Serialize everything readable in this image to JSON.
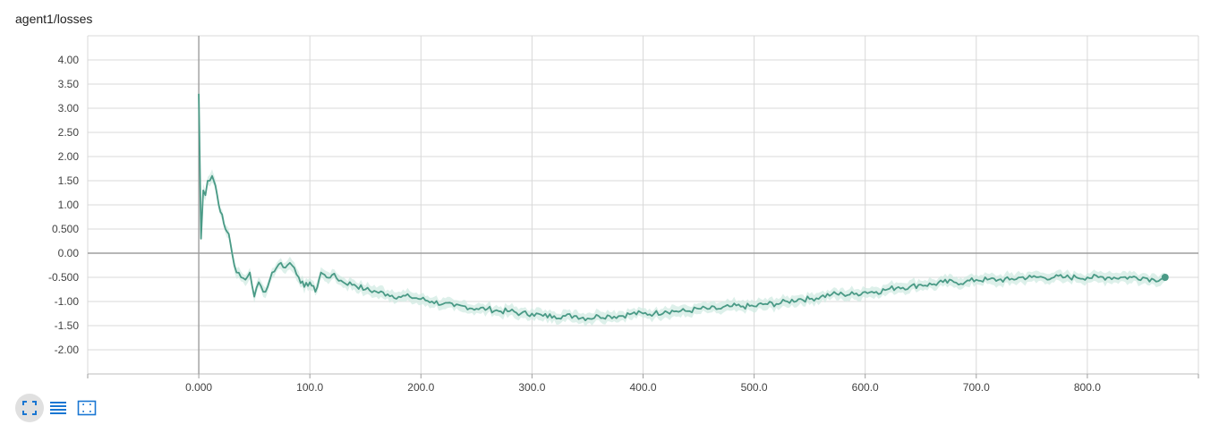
{
  "title": "agent1/losses",
  "toolbar": {
    "buttons": [
      {
        "icon": "fit-to-screen-icon",
        "active": true
      },
      {
        "icon": "data-table-icon",
        "active": false
      },
      {
        "icon": "select-region-icon",
        "active": false
      }
    ],
    "icon_color": "#1976d2"
  },
  "colors": {
    "line": "#4a9a86",
    "band": "#cfe9e1",
    "grid": "#d9d9d9",
    "zero_axis": "#9e9e9e",
    "tick_text": "#424242"
  },
  "chart_data": {
    "type": "line",
    "title": "agent1/losses",
    "xlabel": "",
    "ylabel": "",
    "xlim": [
      -100,
      900
    ],
    "ylim": [
      -2.5,
      4.5
    ],
    "x_ticks": [
      0,
      100,
      200,
      300,
      400,
      500,
      600,
      700,
      800
    ],
    "x_tick_labels": [
      "0.000",
      "100.0",
      "200.0",
      "300.0",
      "400.0",
      "500.0",
      "600.0",
      "700.0",
      "800.0"
    ],
    "y_ticks": [
      4,
      3.5,
      3,
      2.5,
      2,
      1.5,
      1,
      0.5,
      0,
      -0.5,
      -1,
      -1.5,
      -2
    ],
    "y_tick_labels": [
      "4.00",
      "3.50",
      "3.00",
      "2.50",
      "2.00",
      "1.50",
      "1.00",
      "0.500",
      "0.00",
      "-0.500",
      "-1.00",
      "-1.50",
      "-2.00"
    ],
    "grid": true,
    "legend": "none",
    "series": [
      {
        "x": [
          0,
          2,
          4,
          6,
          8,
          10,
          12,
          15,
          18,
          21,
          24,
          27,
          30,
          34,
          38,
          42,
          46,
          50,
          54,
          58,
          62,
          66,
          70,
          74,
          78,
          82,
          86,
          90,
          95,
          100,
          105,
          110,
          115,
          120,
          130,
          140,
          150,
          160,
          170,
          180,
          190,
          200,
          210,
          220,
          230,
          240,
          250,
          260,
          270,
          280,
          290,
          300,
          310,
          320,
          330,
          340,
          350,
          360,
          370,
          380,
          390,
          400,
          410,
          420,
          430,
          440,
          450,
          460,
          470,
          480,
          490,
          500,
          510,
          520,
          530,
          540,
          550,
          560,
          570,
          580,
          590,
          600,
          610,
          620,
          630,
          640,
          650,
          660,
          670,
          680,
          690,
          700,
          710,
          720,
          730,
          740,
          750,
          760,
          770,
          780,
          790,
          800,
          810,
          820,
          830,
          840,
          850,
          860,
          870
        ],
        "y": [
          3.3,
          0.3,
          1.3,
          1.2,
          1.5,
          1.5,
          1.6,
          1.4,
          1.0,
          0.8,
          0.5,
          0.4,
          0.0,
          -0.4,
          -0.5,
          -0.55,
          -0.4,
          -0.9,
          -0.6,
          -0.8,
          -0.7,
          -0.4,
          -0.3,
          -0.2,
          -0.3,
          -0.2,
          -0.3,
          -0.5,
          -0.7,
          -0.6,
          -0.8,
          -0.4,
          -0.5,
          -0.45,
          -0.6,
          -0.65,
          -0.75,
          -0.8,
          -0.85,
          -0.9,
          -0.9,
          -0.95,
          -1.0,
          -1.05,
          -1.1,
          -1.1,
          -1.15,
          -1.15,
          -1.2,
          -1.2,
          -1.25,
          -1.25,
          -1.3,
          -1.3,
          -1.3,
          -1.3,
          -1.35,
          -1.3,
          -1.3,
          -1.3,
          -1.25,
          -1.25,
          -1.25,
          -1.2,
          -1.2,
          -1.2,
          -1.15,
          -1.15,
          -1.15,
          -1.1,
          -1.1,
          -1.1,
          -1.05,
          -1.05,
          -1.0,
          -0.95,
          -0.95,
          -0.9,
          -0.85,
          -0.85,
          -0.85,
          -0.8,
          -0.8,
          -0.75,
          -0.7,
          -0.7,
          -0.65,
          -0.65,
          -0.6,
          -0.6,
          -0.6,
          -0.55,
          -0.55,
          -0.55,
          -0.55,
          -0.5,
          -0.5,
          -0.5,
          -0.5,
          -0.5,
          -0.5,
          -0.5,
          -0.5,
          -0.5,
          -0.5,
          -0.5,
          -0.5,
          -0.55,
          -0.5
        ]
      }
    ]
  }
}
